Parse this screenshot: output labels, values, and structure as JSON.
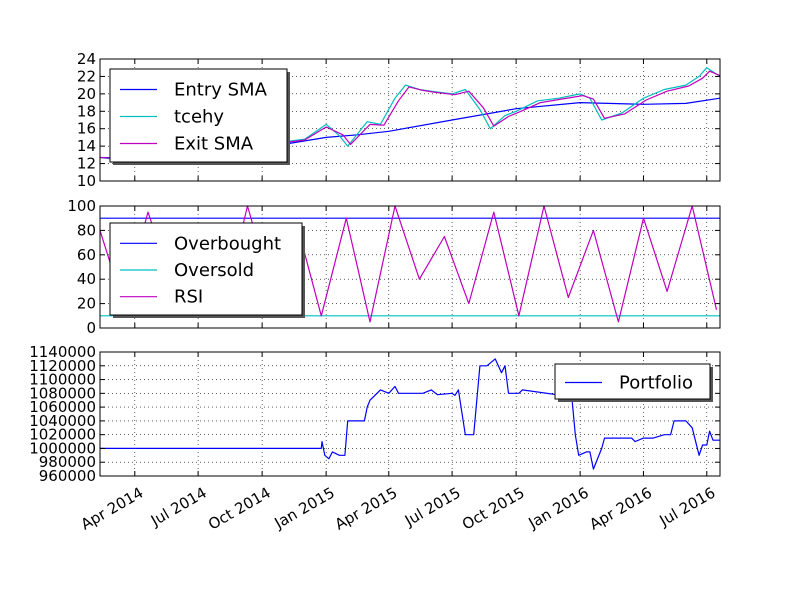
{
  "chart_data": [
    {
      "type": "line",
      "title": "",
      "xlabel": "",
      "ylabel": "",
      "ylim": [
        10,
        24
      ],
      "yticks": [
        "10",
        "12",
        "14",
        "16",
        "18",
        "20",
        "22",
        "24"
      ],
      "grid": true,
      "legend_position": "upper-left",
      "series": [
        {
          "name": "Entry SMA",
          "color": "#0000ff",
          "x": [
            "2014-02-10",
            "2014-04-01",
            "2014-07-01",
            "2014-10-01",
            "2015-01-01",
            "2015-02-15",
            "2015-04-01",
            "2015-07-01",
            "2015-10-01",
            "2016-01-01",
            "2016-04-01",
            "2016-06-01",
            "2016-07-20"
          ],
          "values": [
            12.7,
            12.6,
            12.9,
            13.8,
            15.0,
            15.3,
            15.7,
            17.0,
            18.3,
            19.0,
            18.8,
            18.9,
            19.5
          ]
        },
        {
          "name": "tcehy",
          "color": "#00bfbf",
          "x": [
            "2014-02-10",
            "2014-03-01",
            "2014-04-01",
            "2014-05-01",
            "2014-06-01",
            "2014-07-01",
            "2014-08-01",
            "2014-09-01",
            "2014-10-01",
            "2014-11-01",
            "2014-12-01",
            "2015-01-01",
            "2015-01-20",
            "2015-02-01",
            "2015-03-01",
            "2015-03-20",
            "2015-04-10",
            "2015-04-25",
            "2015-05-15",
            "2015-06-01",
            "2015-07-01",
            "2015-07-20",
            "2015-08-10",
            "2015-08-25",
            "2015-09-15",
            "2015-10-01",
            "2015-11-01",
            "2015-12-01",
            "2016-01-01",
            "2016-01-15",
            "2016-02-01",
            "2016-03-01",
            "2016-04-01",
            "2016-05-01",
            "2016-06-01",
            "2016-06-20",
            "2016-07-01",
            "2016-07-20"
          ],
          "values": [
            12.7,
            12.5,
            12.7,
            12.6,
            12.8,
            13.0,
            13.4,
            13.8,
            14.2,
            14.5,
            14.8,
            16.5,
            15.2,
            14.0,
            16.8,
            16.5,
            19.5,
            21.0,
            20.5,
            20.3,
            20.0,
            20.5,
            18.2,
            16.0,
            17.5,
            18.0,
            19.2,
            19.5,
            20.0,
            19.5,
            17.0,
            17.8,
            19.5,
            20.5,
            21.0,
            22.0,
            23.0,
            22.0
          ]
        },
        {
          "name": "Exit SMA",
          "color": "#bf00bf",
          "x": [
            "2014-02-10",
            "2014-03-01",
            "2014-04-01",
            "2014-05-01",
            "2014-06-01",
            "2014-07-01",
            "2014-08-01",
            "2014-09-01",
            "2014-10-01",
            "2014-11-01",
            "2014-12-01",
            "2015-01-01",
            "2015-01-25",
            "2015-02-05",
            "2015-03-05",
            "2015-03-25",
            "2015-04-15",
            "2015-04-30",
            "2015-05-20",
            "2015-06-05",
            "2015-07-05",
            "2015-07-25",
            "2015-08-15",
            "2015-08-30",
            "2015-09-20",
            "2015-10-05",
            "2015-11-05",
            "2015-12-05",
            "2016-01-05",
            "2016-01-20",
            "2016-02-05",
            "2016-03-05",
            "2016-04-05",
            "2016-05-05",
            "2016-06-05",
            "2016-06-25",
            "2016-07-05",
            "2016-07-20"
          ],
          "values": [
            12.7,
            12.6,
            12.7,
            12.6,
            12.8,
            13.0,
            13.3,
            13.7,
            14.1,
            14.4,
            14.7,
            16.2,
            15.3,
            14.2,
            16.5,
            16.4,
            19.2,
            20.8,
            20.4,
            20.2,
            19.9,
            20.3,
            18.4,
            16.3,
            17.4,
            17.9,
            19.0,
            19.4,
            19.8,
            19.4,
            17.2,
            17.7,
            19.3,
            20.3,
            20.9,
            21.8,
            22.6,
            22.1
          ]
        }
      ]
    },
    {
      "type": "line",
      "title": "",
      "xlabel": "",
      "ylabel": "",
      "ylim": [
        0,
        100
      ],
      "yticks": [
        "0",
        "20",
        "40",
        "60",
        "80",
        "100"
      ],
      "grid": true,
      "legend_position": "upper-left",
      "series": [
        {
          "name": "Overbought",
          "color": "#0000ff",
          "x": [
            "2014-02-10",
            "2016-07-20"
          ],
          "values": [
            90,
            90
          ]
        },
        {
          "name": "Oversold",
          "color": "#00bfbf",
          "x": [
            "2014-02-10",
            "2016-07-20"
          ],
          "values": [
            10,
            10
          ]
        },
        {
          "name": "RSI",
          "color": "#bf00bf",
          "x": [
            "2014-02-10",
            "2014-03-15",
            "2014-04-20",
            "2014-05-25",
            "2014-07-01",
            "2014-08-05",
            "2014-09-10",
            "2014-10-15",
            "2014-11-20",
            "2014-12-25",
            "2015-01-30",
            "2015-03-05",
            "2015-04-10",
            "2015-05-15",
            "2015-06-20",
            "2015-07-25",
            "2015-08-30",
            "2015-10-05",
            "2015-11-10",
            "2015-12-15",
            "2016-01-20",
            "2016-02-25",
            "2016-04-01",
            "2016-05-05",
            "2016-06-10",
            "2016-07-15"
          ],
          "values": [
            80,
            20,
            95,
            35,
            70,
            15,
            100,
            30,
            85,
            10,
            90,
            5,
            100,
            40,
            75,
            20,
            95,
            10,
            100,
            25,
            80,
            5,
            90,
            30,
            100,
            15
          ]
        }
      ]
    },
    {
      "type": "line",
      "title": "",
      "xlabel": "",
      "ylabel": "",
      "ylim": [
        960000,
        1140000
      ],
      "yticks": [
        "960000",
        "980000",
        "1000000",
        "1020000",
        "1040000",
        "1060000",
        "1080000",
        "1100000",
        "1120000",
        "1140000"
      ],
      "xticks": [
        "Apr 2014",
        "Jul 2014",
        "Oct 2014",
        "Jan 2015",
        "Apr 2015",
        "Jul 2015",
        "Oct 2015",
        "Jan 2016",
        "Apr 2016",
        "Jul 2016"
      ],
      "grid": true,
      "legend_position": "upper-right",
      "series": [
        {
          "name": "Portfolio",
          "color": "#0000ff",
          "x": [
            "2014-02-10",
            "2014-12-25",
            "2014-12-26",
            "2014-12-30",
            "2015-01-05",
            "2015-01-10",
            "2015-01-20",
            "2015-01-28",
            "2015-02-01",
            "2015-02-25",
            "2015-03-01",
            "2015-03-05",
            "2015-03-10",
            "2015-03-20",
            "2015-04-01",
            "2015-04-10",
            "2015-04-15",
            "2015-05-01",
            "2015-05-20",
            "2015-06-01",
            "2015-06-10",
            "2015-07-01",
            "2015-07-05",
            "2015-07-10",
            "2015-07-20",
            "2015-08-01",
            "2015-08-10",
            "2015-08-20",
            "2015-09-01",
            "2015-09-10",
            "2015-09-15",
            "2015-09-20",
            "2015-10-05",
            "2015-10-10",
            "2015-12-20",
            "2015-12-25",
            "2015-12-30",
            "2016-01-10",
            "2016-01-15",
            "2016-01-20",
            "2016-02-01",
            "2016-02-05",
            "2016-03-15",
            "2016-03-20",
            "2016-04-01",
            "2016-04-15",
            "2016-05-01",
            "2016-05-10",
            "2016-05-15",
            "2016-05-20",
            "2016-06-01",
            "2016-06-10",
            "2016-06-20",
            "2016-06-25",
            "2016-07-01",
            "2016-07-05",
            "2016-07-10",
            "2016-07-20"
          ],
          "values": [
            1000000,
            1000000,
            1010000,
            990000,
            985000,
            995000,
            990000,
            990000,
            1040000,
            1040000,
            1060000,
            1070000,
            1075000,
            1085000,
            1080000,
            1090000,
            1080000,
            1080000,
            1080000,
            1085000,
            1078000,
            1080000,
            1077000,
            1085000,
            1020000,
            1020000,
            1120000,
            1120000,
            1130000,
            1110000,
            1120000,
            1080000,
            1080000,
            1085000,
            1075000,
            1020000,
            990000,
            995000,
            995000,
            970000,
            1000000,
            1015000,
            1015000,
            1010000,
            1015000,
            1015000,
            1020000,
            1020000,
            1040000,
            1040000,
            1040000,
            1030000,
            990000,
            1005000,
            1005000,
            1025000,
            1012000,
            1012000
          ]
        }
      ]
    }
  ]
}
